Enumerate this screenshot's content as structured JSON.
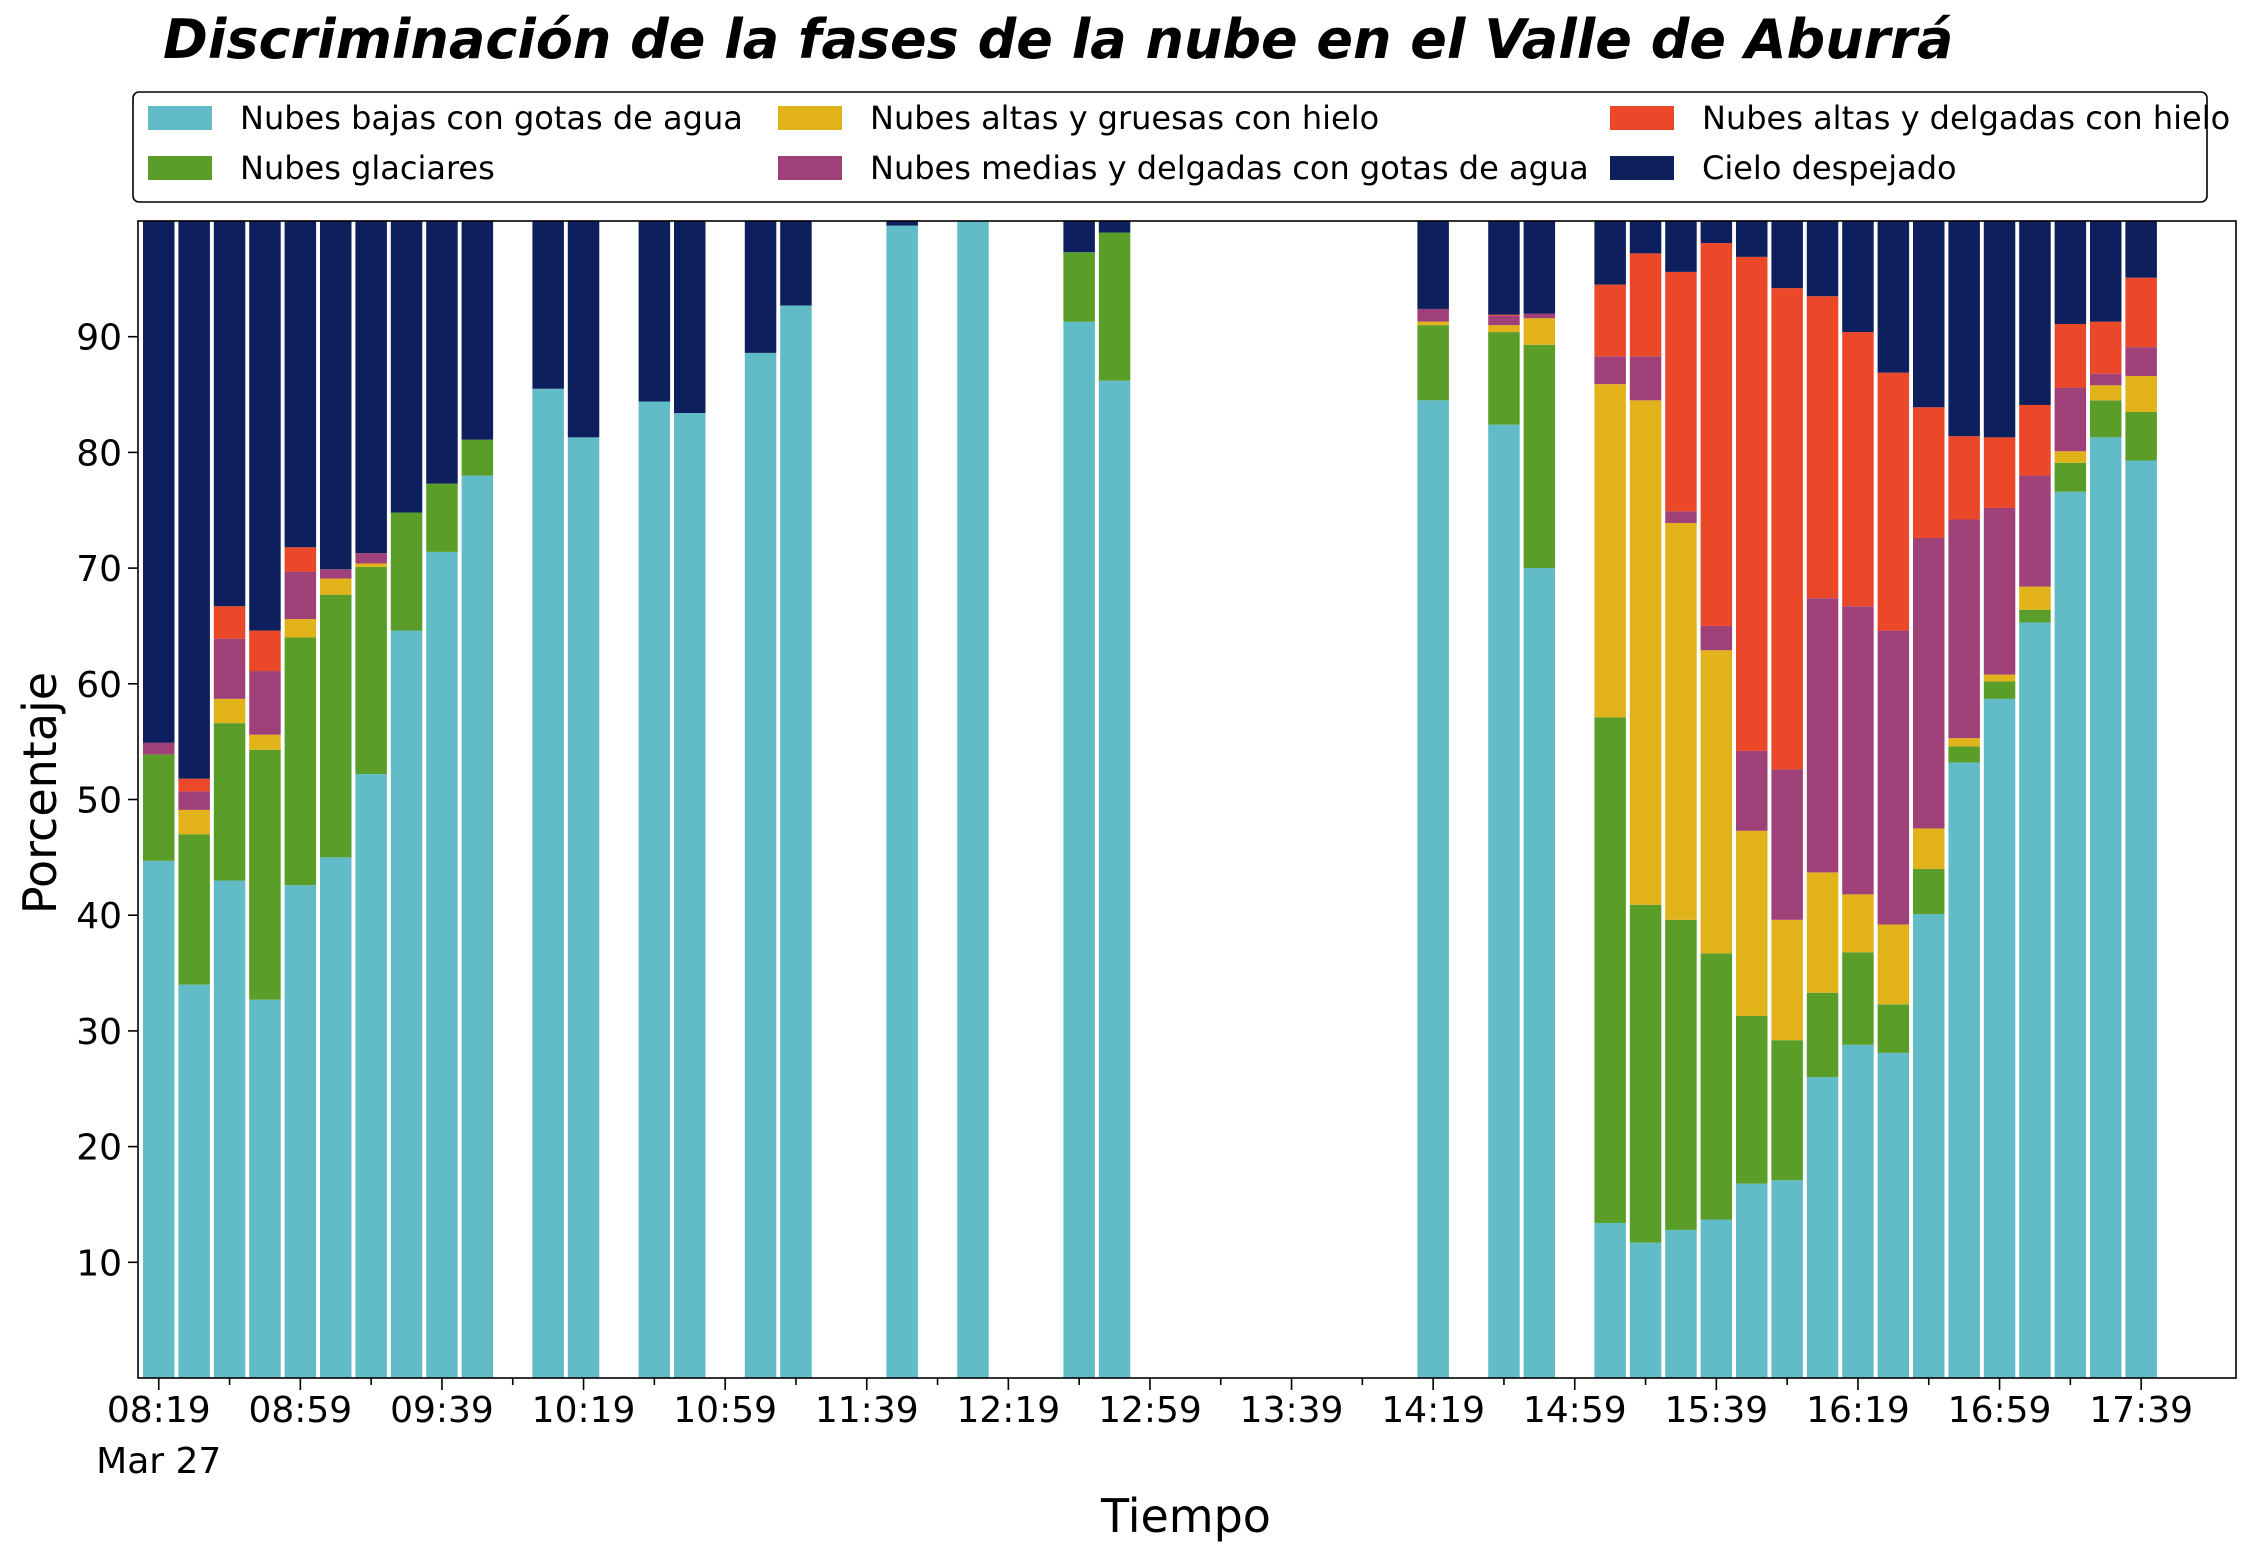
{
  "chart_data": {
    "type": "bar",
    "stacked": true,
    "title": "Discriminación de la fases de la nube en el Valle de Aburrá",
    "xlabel": "Tiempo",
    "ylabel": "Porcentaje",
    "ylim": [
      0,
      100
    ],
    "yticks": [
      10,
      20,
      30,
      40,
      50,
      60,
      70,
      80,
      90
    ],
    "xtick_labels": [
      "08:19",
      "08:59",
      "09:39",
      "10:19",
      "10:59",
      "11:39",
      "12:19",
      "12:59",
      "13:39",
      "14:19",
      "14:59",
      "15:39",
      "16:19",
      "16:59",
      "17:39"
    ],
    "date_label": "Mar 27",
    "legend_position": "top",
    "categories": [
      "08:19",
      "08:29",
      "08:39",
      "08:49",
      "08:59",
      "09:09",
      "09:19",
      "09:29",
      "09:39",
      "09:49",
      "09:59",
      "10:09",
      "10:19",
      "10:29",
      "10:39",
      "10:49",
      "10:59",
      "11:09",
      "11:19",
      "11:29",
      "11:39",
      "11:49",
      "11:59",
      "12:09",
      "12:19",
      "12:29",
      "12:39",
      "12:49",
      "12:59",
      "13:09",
      "13:19",
      "13:29",
      "13:39",
      "13:49",
      "13:59",
      "14:09",
      "14:19",
      "14:29",
      "14:39",
      "14:49",
      "14:59",
      "15:09",
      "15:19",
      "15:29",
      "15:39",
      "15:49",
      "15:59",
      "16:09",
      "16:19",
      "16:29",
      "16:39",
      "16:49",
      "16:59",
      "17:09",
      "17:19",
      "17:29",
      "17:39",
      "17:49"
    ],
    "series": [
      {
        "name": "Nubes bajas con gotas de agua",
        "color": "#62bcc8",
        "values": [
          44.7,
          34.0,
          43.0,
          32.7,
          42.6,
          45.0,
          52.2,
          64.6,
          71.4,
          78.0,
          null,
          85.5,
          81.3,
          null,
          84.4,
          83.4,
          null,
          88.6,
          92.7,
          null,
          null,
          99.6,
          null,
          100.0,
          null,
          null,
          91.3,
          86.2,
          null,
          null,
          null,
          null,
          null,
          null,
          null,
          null,
          84.5,
          null,
          82.4,
          70.0,
          null,
          13.4,
          11.7,
          12.8,
          13.7,
          16.8,
          17.1,
          26.0,
          28.8,
          28.1,
          40.1,
          53.2,
          58.7,
          65.3,
          76.6,
          81.3,
          79.3,
          null
        ]
      },
      {
        "name": "Nubes glaciares",
        "color": "#5a9e29",
        "values": [
          9.2,
          13.0,
          13.6,
          21.6,
          21.4,
          22.7,
          17.9,
          10.2,
          5.9,
          3.1,
          null,
          0,
          0,
          null,
          0,
          0,
          null,
          0,
          0,
          null,
          null,
          0,
          null,
          0,
          null,
          null,
          6.0,
          12.8,
          null,
          null,
          null,
          null,
          null,
          null,
          null,
          null,
          6.5,
          null,
          8.0,
          19.3,
          null,
          43.7,
          29.2,
          26.8,
          23.0,
          14.5,
          12.1,
          7.3,
          8.0,
          4.2,
          3.9,
          1.4,
          1.5,
          1.1,
          2.5,
          3.2,
          4.2,
          null
        ]
      },
      {
        "name": "Nubes altas y gruesas con hielo",
        "color": "#e1b219",
        "values": [
          0,
          2.1,
          2.1,
          1.3,
          1.6,
          1.4,
          0.3,
          0,
          0,
          0,
          null,
          0,
          0,
          null,
          0,
          0,
          null,
          0,
          0,
          null,
          null,
          0,
          null,
          0,
          null,
          null,
          0,
          0,
          null,
          null,
          null,
          null,
          null,
          null,
          null,
          null,
          0.3,
          null,
          0.6,
          2.3,
          null,
          28.8,
          43.6,
          34.3,
          26.2,
          16.0,
          10.4,
          10.4,
          5.0,
          6.9,
          3.5,
          0.7,
          0.6,
          2.0,
          1.0,
          1.3,
          3.1,
          null
        ]
      },
      {
        "name": "Nubes medias y delgadas con gotas de agua",
        "color": "#9f4178",
        "values": [
          1.0,
          1.6,
          5.2,
          5.5,
          4.1,
          0.8,
          0.9,
          0,
          0,
          0,
          null,
          0,
          0,
          null,
          0,
          0,
          null,
          0,
          0,
          null,
          null,
          0,
          null,
          0,
          null,
          null,
          0,
          0,
          null,
          null,
          null,
          null,
          null,
          null,
          null,
          null,
          1.1,
          null,
          0.8,
          0.4,
          null,
          2.4,
          3.8,
          1.0,
          2.1,
          6.9,
          13.0,
          23.7,
          24.9,
          25.4,
          25.1,
          18.9,
          14.4,
          9.6,
          5.5,
          1.0,
          2.5,
          null
        ]
      },
      {
        "name": "Nubes altas y delgadas con hielo",
        "color": "#eb4729",
        "values": [
          0,
          1.1,
          2.8,
          3.5,
          2.1,
          0,
          0,
          0,
          0,
          0,
          null,
          0,
          0,
          null,
          0,
          0,
          null,
          0,
          0,
          null,
          null,
          0,
          null,
          0,
          null,
          null,
          0,
          0,
          null,
          null,
          null,
          null,
          null,
          null,
          null,
          null,
          0,
          null,
          0.1,
          0,
          null,
          6.2,
          8.9,
          20.7,
          33.1,
          42.7,
          41.6,
          26.1,
          23.7,
          22.3,
          11.3,
          7.2,
          6.1,
          6.1,
          5.5,
          4.5,
          6.0,
          null
        ]
      },
      {
        "name": "Cielo despejado",
        "color": "#0e1f5d",
        "values": [
          45.1,
          48.2,
          33.3,
          35.4,
          28.2,
          30.1,
          28.7,
          25.2,
          22.7,
          18.9,
          null,
          14.5,
          18.7,
          null,
          15.6,
          16.6,
          null,
          11.4,
          7.3,
          null,
          null,
          0.4,
          null,
          0,
          null,
          null,
          2.7,
          1.0,
          null,
          null,
          null,
          null,
          null,
          null,
          null,
          null,
          7.6,
          null,
          8.1,
          8.0,
          null,
          5.5,
          2.8,
          4.4,
          1.9,
          3.1,
          5.8,
          6.5,
          9.6,
          13.1,
          16.1,
          18.6,
          18.7,
          15.9,
          8.9,
          8.7,
          4.9,
          null
        ]
      }
    ]
  }
}
